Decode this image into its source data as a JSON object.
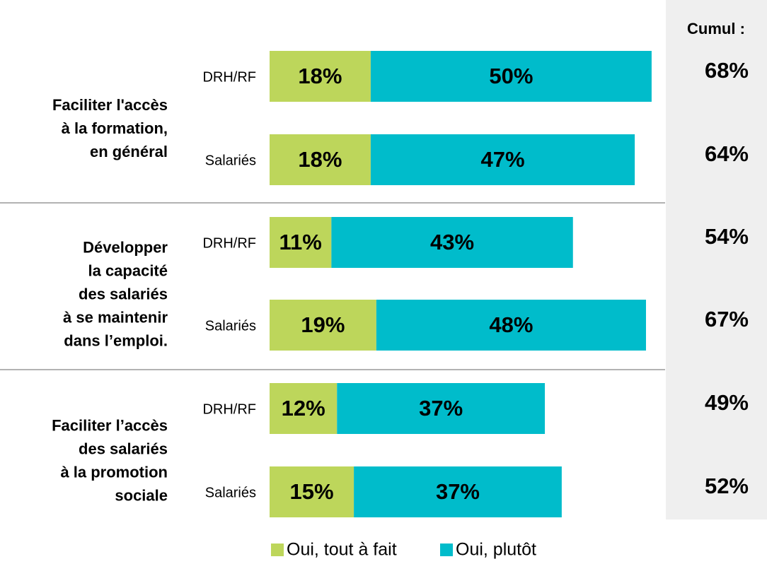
{
  "chart_data": {
    "type": "bar",
    "orientation": "horizontal",
    "stacked": true,
    "categories": [
      "DRH/RF",
      "Salariés",
      "DRH/RF",
      "Salariés",
      "DRH/RF",
      "Salariés"
    ],
    "groups": [
      {
        "label": [
          "Faciliter l'accès",
          "à la formation,",
          "en général"
        ]
      },
      {
        "label": [
          "Développer",
          "la capacité",
          "des salariés",
          "à se maintenir",
          "dans l’emploi."
        ]
      },
      {
        "label": [
          "Faciliter l’accès",
          "des salariés",
          "à la promotion",
          "sociale"
        ]
      }
    ],
    "series": [
      {
        "name": "Oui, tout à fait",
        "color": "#bdd65b",
        "values": [
          18,
          18,
          11,
          19,
          12,
          15
        ],
        "value_labels": [
          "18%",
          "18%",
          "11%",
          "19%",
          "12%",
          "15%"
        ]
      },
      {
        "name": "Oui, plutôt",
        "color": "#00bccb",
        "values": [
          50,
          47,
          43,
          48,
          37,
          37
        ],
        "value_labels": [
          "50%",
          "47%",
          "43%",
          "48%",
          "37%",
          "37%"
        ]
      }
    ],
    "totals": {
      "name": "Cumul :",
      "values": [
        68,
        64,
        54,
        67,
        49,
        52
      ],
      "value_labels": [
        "68%",
        "64%",
        "54%",
        "67%",
        "49%",
        "52%"
      ]
    },
    "legend": "bottom"
  }
}
